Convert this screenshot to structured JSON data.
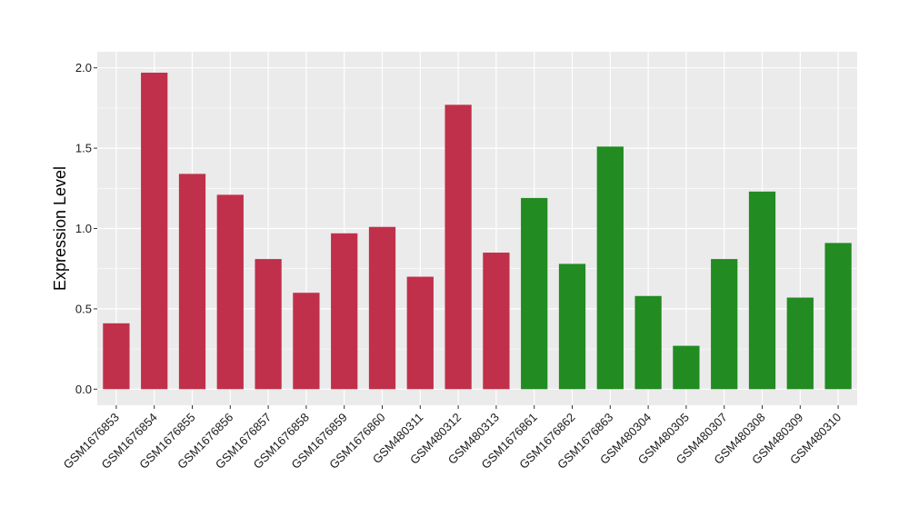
{
  "chart_data": {
    "type": "bar",
    "ylabel": "Expression Level",
    "xlabel": "",
    "ylim": [
      -0.1,
      2.1
    ],
    "yticks": [
      0.0,
      0.5,
      1.0,
      1.5,
      2.0
    ],
    "ytick_labels": [
      "0.0",
      "0.5",
      "1.0",
      "1.5",
      "2.0"
    ],
    "grid": true,
    "categories": [
      "GSM1676853",
      "GSM1676854",
      "GSM1676855",
      "GSM1676856",
      "GSM1676857",
      "GSM1676858",
      "GSM1676859",
      "GSM1676860",
      "GSM480311",
      "GSM480312",
      "GSM480313",
      "GSM1676861",
      "GSM1676862",
      "GSM1676863",
      "GSM480304",
      "GSM480305",
      "GSM480307",
      "GSM480308",
      "GSM480309",
      "GSM480310"
    ],
    "values": [
      0.41,
      1.97,
      1.34,
      1.21,
      0.81,
      0.6,
      0.97,
      1.01,
      0.7,
      1.77,
      0.85,
      1.19,
      0.78,
      1.51,
      0.58,
      0.27,
      0.81,
      1.23,
      0.57,
      0.91
    ],
    "groups": [
      0,
      0,
      0,
      0,
      0,
      0,
      0,
      0,
      0,
      0,
      0,
      1,
      1,
      1,
      1,
      1,
      1,
      1,
      1,
      1
    ],
    "group_colors": [
      "#C0304A",
      "#228B22"
    ],
    "panel_background": "#EBEBEB",
    "grid_color": "#FFFFFF"
  }
}
